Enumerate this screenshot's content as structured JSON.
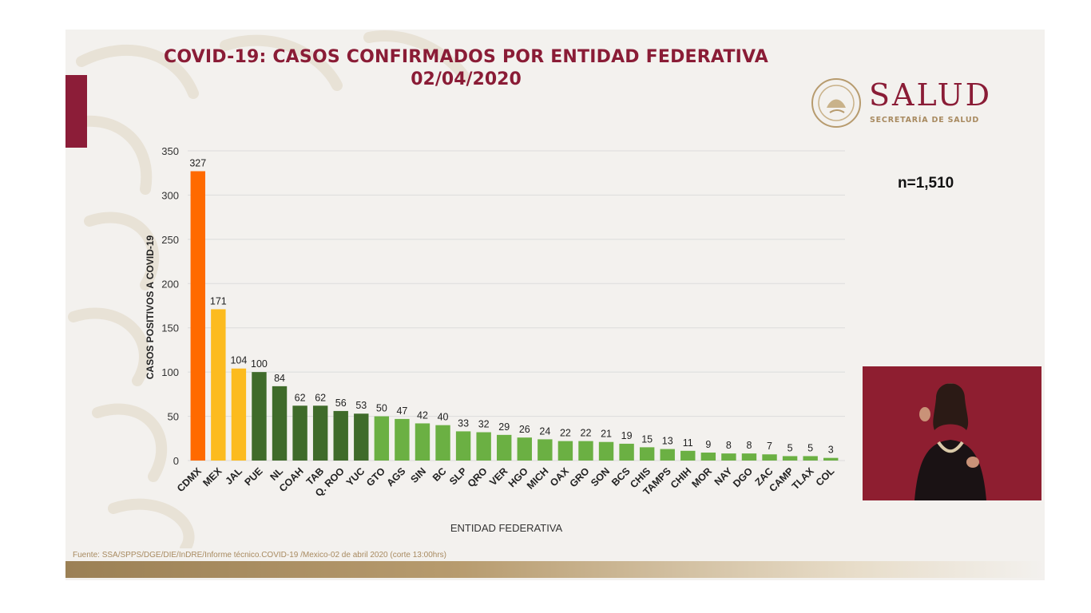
{
  "slide": {
    "title_line1": "COVID-19: CASOS CONFIRMADOS POR ENTIDAD FEDERATIVA",
    "title_line2": "02/04/2020",
    "n_label": "n=1,510",
    "source": "Fuente: SSA/SPPS/DGE/DIE/InDRE/Informe técnico.COVID-19 /Mexico-02 de abril 2020 (corte 13:00hrs)"
  },
  "logo": {
    "brand": "SALUD",
    "subtitle": "SECRETARÍA DE SALUD"
  },
  "colors": {
    "title": "#8a1c36",
    "highest": "#ff6a00",
    "high": "#fcbb1f",
    "mid": "#3f6b2a",
    "low": "#6bb043",
    "grid": "#dcdcdc"
  },
  "chart_data": {
    "type": "bar",
    "title": "COVID-19: CASOS CONFIRMADOS POR ENTIDAD FEDERATIVA",
    "xlabel": "ENTIDAD FEDERATIVA",
    "ylabel": "CASOS POSITIVOS A COVID-19",
    "ylim": [
      0,
      350
    ],
    "yticks": [
      0,
      50,
      100,
      150,
      200,
      250,
      300,
      350
    ],
    "grid": true,
    "categories": [
      "CDMX",
      "MEX",
      "JAL",
      "PUE",
      "NL",
      "COAH",
      "TAB",
      "Q. ROO",
      "YUC",
      "GTO",
      "AGS",
      "SIN",
      "BC",
      "SLP",
      "QRO",
      "VER",
      "HGO",
      "MICH",
      "OAX",
      "GRO",
      "SON",
      "BCS",
      "CHIS",
      "TAMPS",
      "CHIH",
      "MOR",
      "NAY",
      "DGO",
      "ZAC",
      "CAMP",
      "TLAX",
      "COL"
    ],
    "values": [
      327,
      171,
      104,
      100,
      84,
      62,
      62,
      56,
      53,
      50,
      47,
      42,
      40,
      33,
      32,
      29,
      26,
      24,
      22,
      22,
      21,
      19,
      15,
      13,
      11,
      9,
      8,
      8,
      7,
      5,
      5,
      3
    ],
    "bar_colors": [
      "#ff6a00",
      "#fcbb1f",
      "#fcbb1f",
      "#3f6b2a",
      "#3f6b2a",
      "#3f6b2a",
      "#3f6b2a",
      "#3f6b2a",
      "#3f6b2a",
      "#6bb043",
      "#6bb043",
      "#6bb043",
      "#6bb043",
      "#6bb043",
      "#6bb043",
      "#6bb043",
      "#6bb043",
      "#6bb043",
      "#6bb043",
      "#6bb043",
      "#6bb043",
      "#6bb043",
      "#6bb043",
      "#6bb043",
      "#6bb043",
      "#6bb043",
      "#6bb043",
      "#6bb043",
      "#6bb043",
      "#6bb043",
      "#6bb043",
      "#6bb043"
    ]
  }
}
